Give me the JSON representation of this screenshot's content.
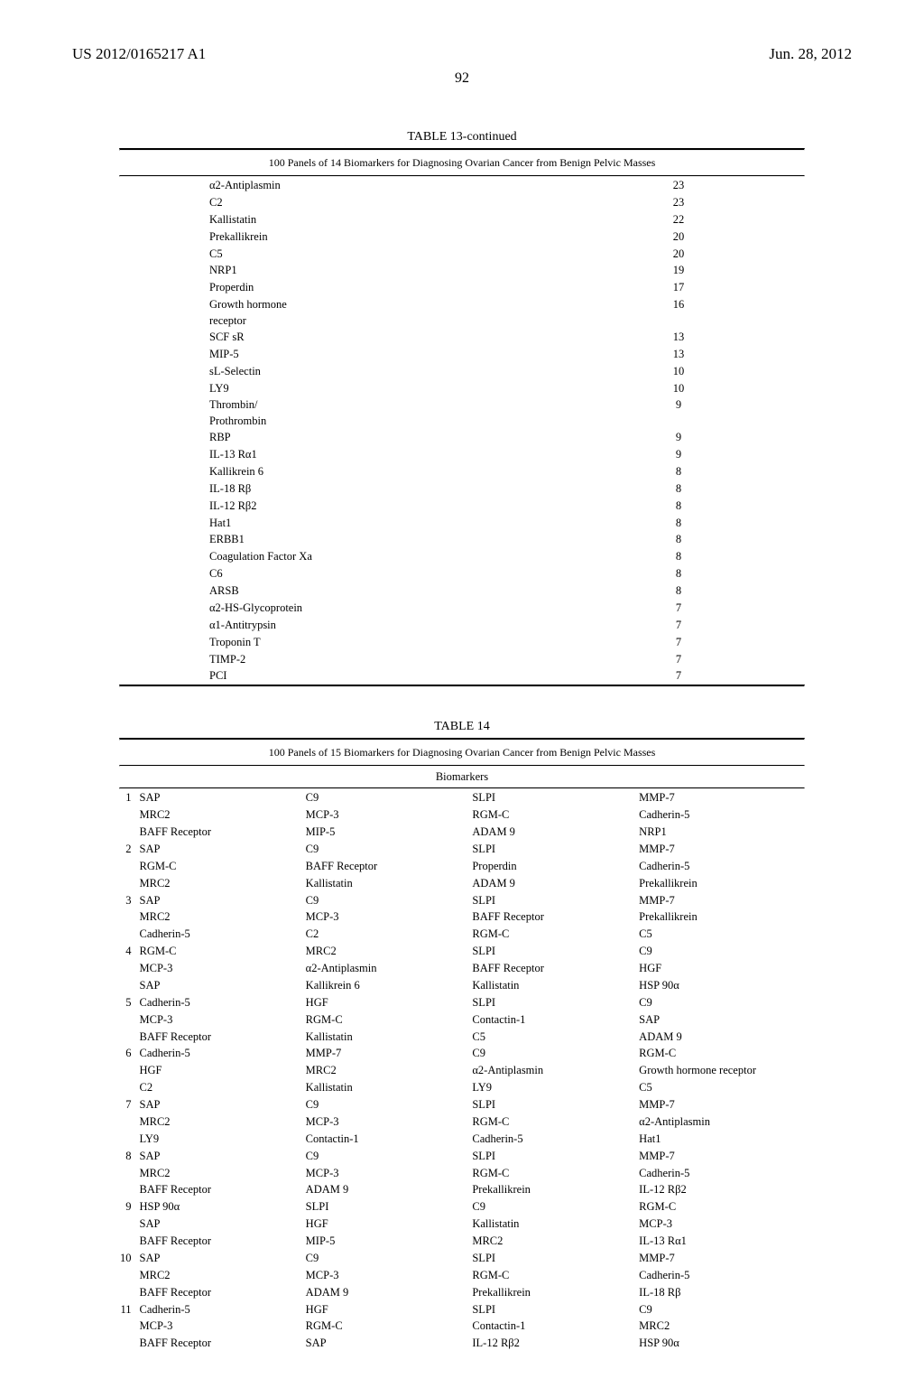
{
  "header": {
    "left": "US 2012/0165217 A1",
    "right": "Jun. 28, 2012"
  },
  "page_number": "92",
  "table13": {
    "title": "TABLE 13-continued",
    "caption": "100 Panels of 14 Biomarkers for Diagnosing Ovarian Cancer from Benign Pelvic Masses",
    "rows": [
      {
        "label": "α2-Antiplasmin",
        "val": "23"
      },
      {
        "label": "C2",
        "val": "23"
      },
      {
        "label": "Kallistatin",
        "val": "22"
      },
      {
        "label": "Prekallikrein",
        "val": "20"
      },
      {
        "label": "C5",
        "val": "20"
      },
      {
        "label": "NRP1",
        "val": "19"
      },
      {
        "label": "Properdin",
        "val": "17"
      },
      {
        "label": "Growth hormone",
        "val": "16"
      },
      {
        "label": "receptor",
        "val": ""
      },
      {
        "label": "SCF sR",
        "val": "13"
      },
      {
        "label": "MIP-5",
        "val": "13"
      },
      {
        "label": "sL-Selectin",
        "val": "10"
      },
      {
        "label": "LY9",
        "val": "10"
      },
      {
        "label": "Thrombin/",
        "val": "9"
      },
      {
        "label": "Prothrombin",
        "val": ""
      },
      {
        "label": "RBP",
        "val": "9"
      },
      {
        "label": "IL-13 Rα1",
        "val": "9"
      },
      {
        "label": "Kallikrein 6",
        "val": "8"
      },
      {
        "label": "IL-18 Rβ",
        "val": "8"
      },
      {
        "label": "IL-12 Rβ2",
        "val": "8"
      },
      {
        "label": "Hat1",
        "val": "8"
      },
      {
        "label": "ERBB1",
        "val": "8"
      },
      {
        "label": "Coagulation Factor Xa",
        "val": "8"
      },
      {
        "label": "C6",
        "val": "8"
      },
      {
        "label": "ARSB",
        "val": "8"
      },
      {
        "label": "α2-HS-Glycoprotein",
        "val": "7"
      },
      {
        "label": "α1-Antitrypsin",
        "val": "7"
      },
      {
        "label": "Troponin T",
        "val": "7"
      },
      {
        "label": "TIMP-2",
        "val": "7"
      },
      {
        "label": "PCI",
        "val": "7"
      }
    ]
  },
  "table14": {
    "title": "TABLE 14",
    "caption": "100 Panels of 15 Biomarkers for Diagnosing Ovarian Cancer from Benign Pelvic Masses",
    "colhdr": "Biomarkers",
    "panels": [
      {
        "n": "1",
        "a1": "SAP",
        "b1": "C9",
        "c1": "SLPI",
        "d1": "MMP-7",
        "a2": "MRC2",
        "b2": "MCP-3",
        "c2": "RGM-C",
        "d2": "Cadherin-5",
        "a3": "BAFF Receptor",
        "b3": "MIP-5",
        "c3": "ADAM 9",
        "d3": "NRP1"
      },
      {
        "n": "2",
        "a1": "SAP",
        "b1": "C9",
        "c1": "SLPI",
        "d1": "MMP-7",
        "a2": "RGM-C",
        "b2": "BAFF Receptor",
        "c2": "Properdin",
        "d2": "Cadherin-5",
        "a3": "MRC2",
        "b3": "Kallistatin",
        "c3": "ADAM 9",
        "d3": "Prekallikrein"
      },
      {
        "n": "3",
        "a1": "SAP",
        "b1": "C9",
        "c1": "SLPI",
        "d1": "MMP-7",
        "a2": "MRC2",
        "b2": "MCP-3",
        "c2": "BAFF Receptor",
        "d2": "Prekallikrein",
        "a3": "Cadherin-5",
        "b3": "C2",
        "c3": "RGM-C",
        "d3": "C5"
      },
      {
        "n": "4",
        "a1": "RGM-C",
        "b1": "MRC2",
        "c1": "SLPI",
        "d1": "C9",
        "a2": "MCP-3",
        "b2": "α2-Antiplasmin",
        "c2": "BAFF Receptor",
        "d2": "HGF",
        "a3": "SAP",
        "b3": "Kallikrein 6",
        "c3": "Kallistatin",
        "d3": "HSP 90α"
      },
      {
        "n": "5",
        "a1": "Cadherin-5",
        "b1": "HGF",
        "c1": "SLPI",
        "d1": "C9",
        "a2": "MCP-3",
        "b2": "RGM-C",
        "c2": "Contactin-1",
        "d2": "SAP",
        "a3": "BAFF Receptor",
        "b3": "Kallistatin",
        "c3": "C5",
        "d3": "ADAM 9"
      },
      {
        "n": "6",
        "a1": "Cadherin-5",
        "b1": "MMP-7",
        "c1": "C9",
        "d1": "RGM-C",
        "a2": "HGF",
        "b2": "MRC2",
        "c2": "α2-Antiplasmin",
        "d2": "Growth hormone receptor",
        "a3": "C2",
        "b3": "Kallistatin",
        "c3": "LY9",
        "d3": "C5"
      },
      {
        "n": "7",
        "a1": "SAP",
        "b1": "C9",
        "c1": "SLPI",
        "d1": "MMP-7",
        "a2": "MRC2",
        "b2": "MCP-3",
        "c2": "RGM-C",
        "d2": "α2-Antiplasmin",
        "a3": "LY9",
        "b3": "Contactin-1",
        "c3": "Cadherin-5",
        "d3": "Hat1"
      },
      {
        "n": "8",
        "a1": "SAP",
        "b1": "C9",
        "c1": "SLPI",
        "d1": "MMP-7",
        "a2": "MRC2",
        "b2": "MCP-3",
        "c2": "RGM-C",
        "d2": "Cadherin-5",
        "a3": "BAFF Receptor",
        "b3": "ADAM 9",
        "c3": "Prekallikrein",
        "d3": "IL-12 Rβ2"
      },
      {
        "n": "9",
        "a1": "HSP 90α",
        "b1": "SLPI",
        "c1": "C9",
        "d1": "RGM-C",
        "a2": "SAP",
        "b2": "HGF",
        "c2": "Kallistatin",
        "d2": "MCP-3",
        "a3": "BAFF Receptor",
        "b3": "MIP-5",
        "c3": "MRC2",
        "d3": "IL-13 Rα1"
      },
      {
        "n": "10",
        "a1": "SAP",
        "b1": "C9",
        "c1": "SLPI",
        "d1": "MMP-7",
        "a2": "MRC2",
        "b2": "MCP-3",
        "c2": "RGM-C",
        "d2": "Cadherin-5",
        "a3": "BAFF Receptor",
        "b3": "ADAM 9",
        "c3": "Prekallikrein",
        "d3": "IL-18 Rβ"
      },
      {
        "n": "11",
        "a1": "Cadherin-5",
        "b1": "HGF",
        "c1": "SLPI",
        "d1": "C9",
        "a2": "MCP-3",
        "b2": "RGM-C",
        "c2": "Contactin-1",
        "d2": "MRC2",
        "a3": "BAFF Receptor",
        "b3": "SAP",
        "c3": "IL-12 Rβ2",
        "d3": "HSP 90α"
      }
    ]
  }
}
